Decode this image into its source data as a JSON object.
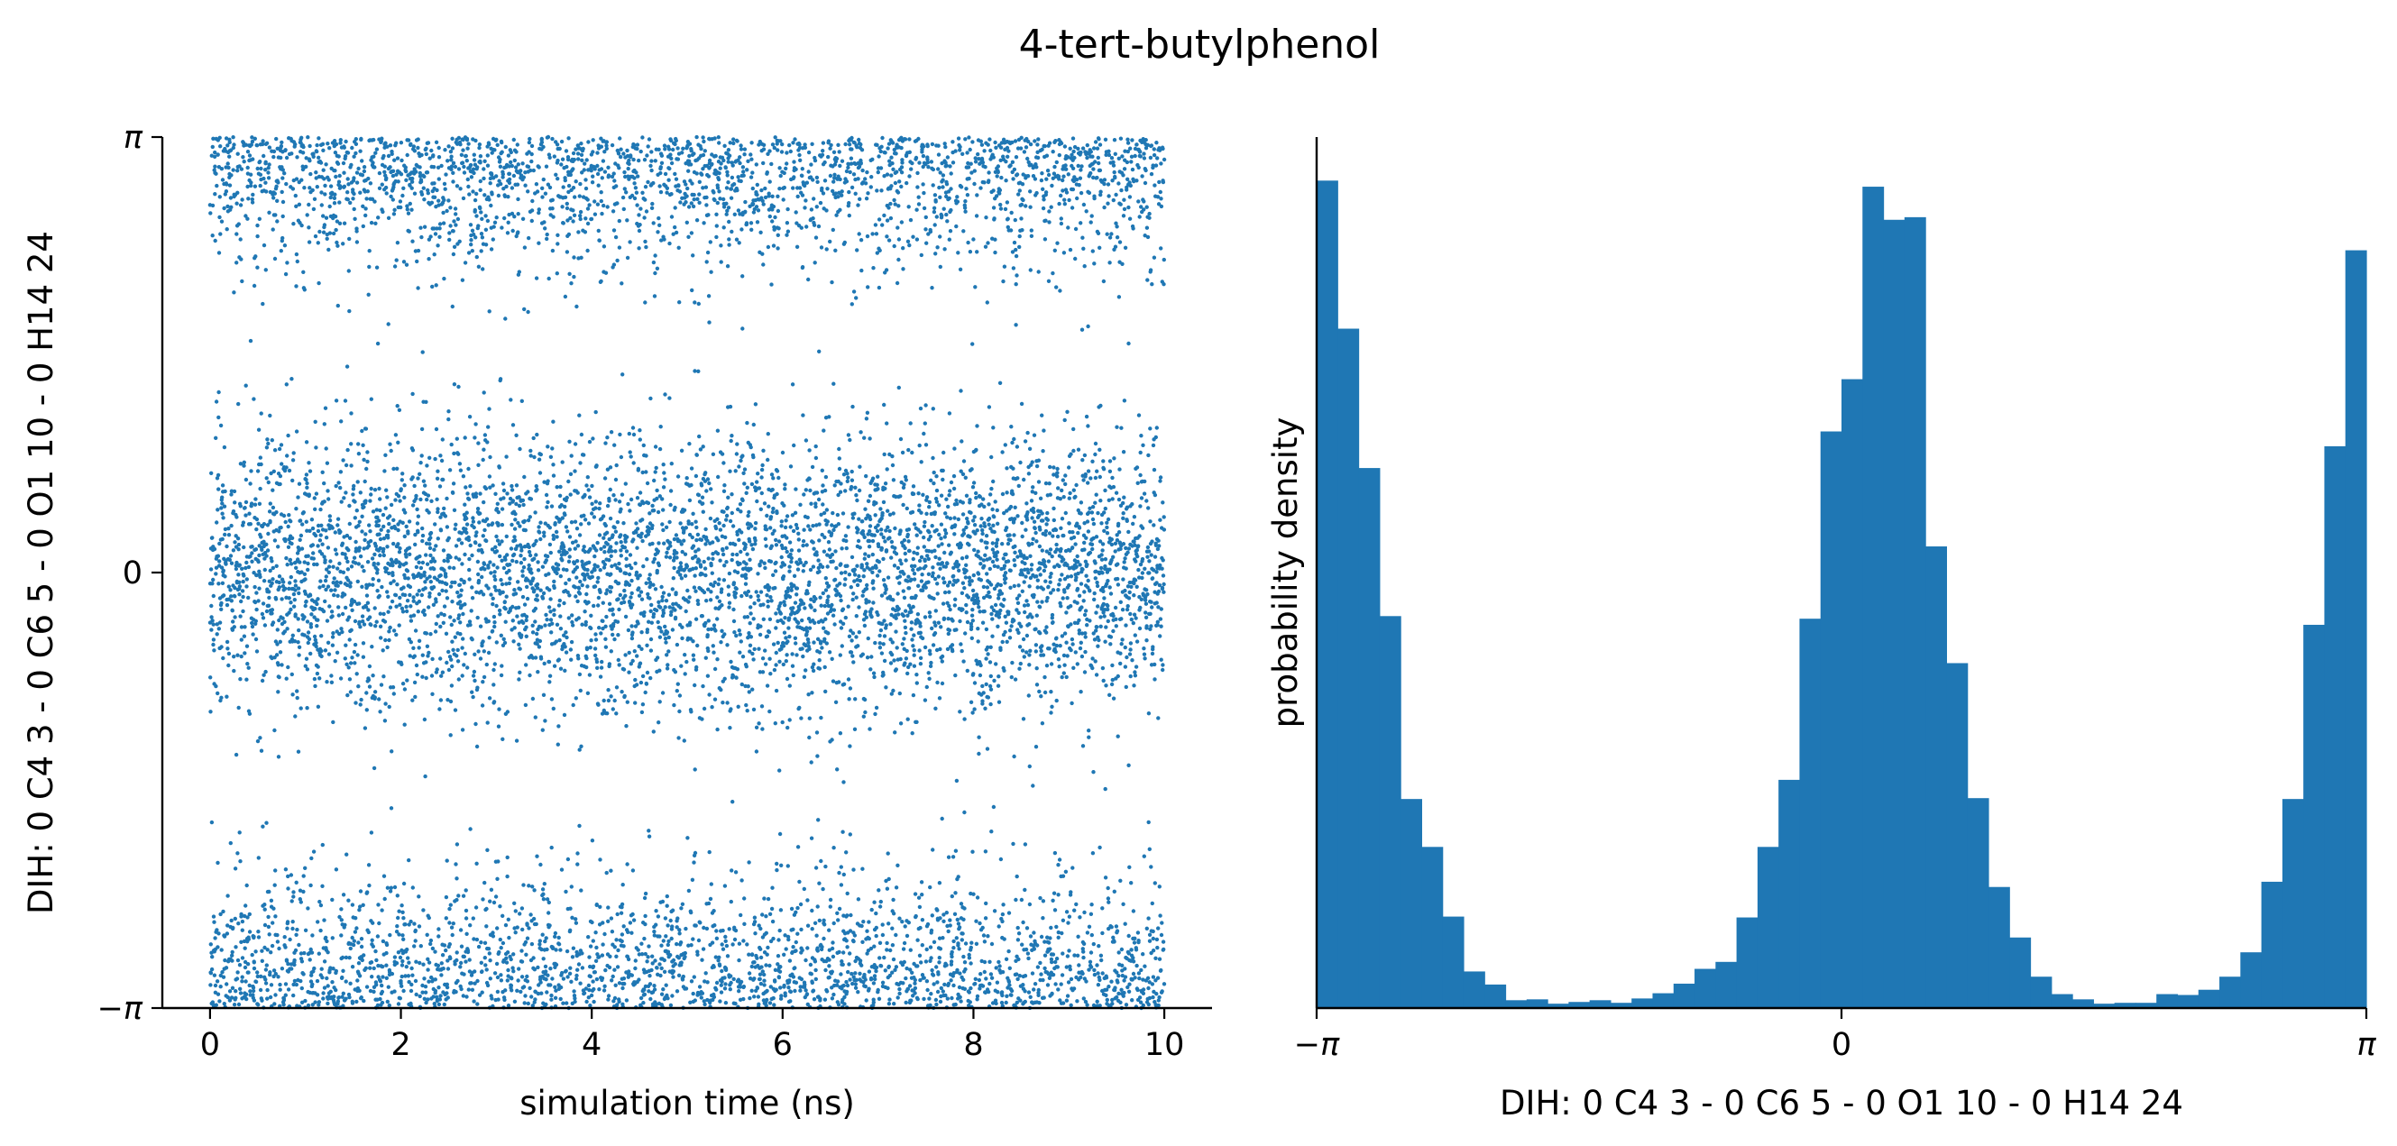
{
  "title": "4-tert-butylphenol",
  "chart_data": [
    {
      "type": "scatter",
      "xlabel": "simulation time (ns)",
      "ylabel": "DIH:  0 C4 3 -  0 C6 5 -  0 O1 10 -  0 H14 24",
      "xlim": [
        -0.5,
        10.5
      ],
      "ylim": [
        -3.14159,
        3.14159
      ],
      "xticks": [
        0,
        2,
        4,
        6,
        8,
        10
      ],
      "xtick_labels": [
        "0",
        "2",
        "4",
        "6",
        "8",
        "10"
      ],
      "yticks": [
        -3.14159,
        0,
        3.14159
      ],
      "ytick_labels": [
        "−π",
        "0",
        "π"
      ],
      "grid": false,
      "marker_color": "#1f77b4",
      "n_points": 10000,
      "t_range_ns": [
        0,
        10
      ],
      "modes": [
        {
          "center": 0.0,
          "sd": 0.5,
          "weight": 0.5
        },
        {
          "center": 3.14159,
          "sd": 0.45,
          "weight": 0.5
        }
      ]
    },
    {
      "type": "histogram",
      "xlabel": "DIH:  0 C4 3 -  0 C6 5 -  0 O1 10 -  0 H14 24",
      "ylabel": "probability density",
      "xlim": [
        -3.14159,
        3.14159
      ],
      "xticks": [
        -3.14159,
        0,
        3.14159
      ],
      "xtick_labels": [
        "−π",
        "0",
        "π"
      ],
      "yticks_shown": false,
      "bins": 50,
      "bin_range": [
        -3.14159,
        3.14159
      ],
      "densities": [
        0.95,
        0.78,
        0.62,
        0.45,
        0.24,
        0.185,
        0.105,
        0.042,
        0.027,
        0.009,
        0.01,
        0.005,
        0.007,
        0.009,
        0.006,
        0.011,
        0.017,
        0.028,
        0.045,
        0.053,
        0.104,
        0.185,
        0.262,
        0.447,
        0.662,
        0.722,
        0.943,
        0.905,
        0.908,
        0.53,
        0.396,
        0.241,
        0.139,
        0.081,
        0.036,
        0.016,
        0.01,
        0.005,
        0.006,
        0.006,
        0.016,
        0.015,
        0.021,
        0.036,
        0.064,
        0.145,
        0.24,
        0.44,
        0.645,
        0.87
      ],
      "grid": false,
      "bar_color": "#1f77b4"
    }
  ]
}
